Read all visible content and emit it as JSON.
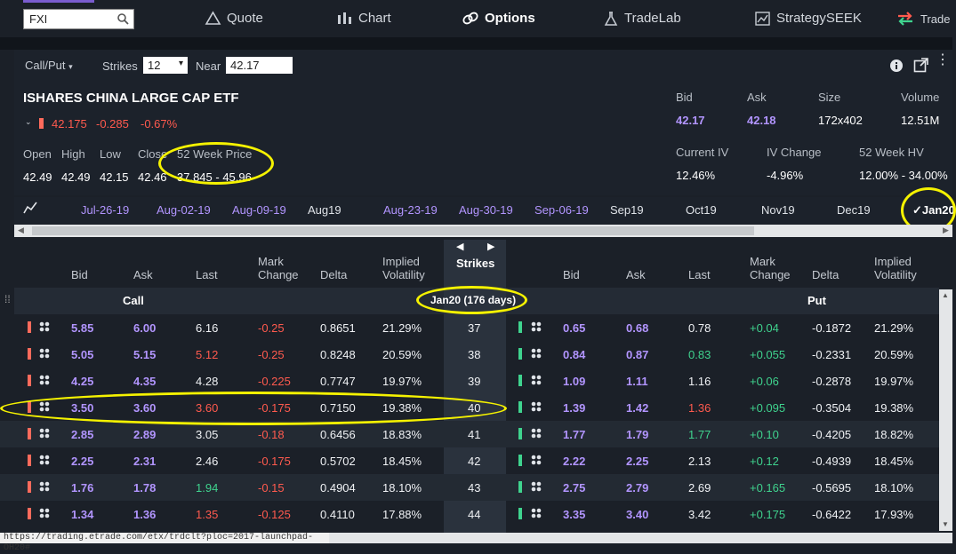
{
  "search": {
    "value": "FXI"
  },
  "nav": {
    "quote": "Quote",
    "chart": "Chart",
    "options": "Options",
    "tradelab": "TradeLab",
    "strategyseek": "StrategySEEK",
    "trade": "Trade"
  },
  "controls": {
    "callput": "Call/Put",
    "strikes_label": "Strikes",
    "strikes_value": "12",
    "near_label": "Near",
    "near_value": "42.17"
  },
  "quote": {
    "name": "ISHARES CHINA LARGE CAP ETF",
    "last": "42.175",
    "change": "-0.285",
    "change_pct": "-0.67%",
    "open_label": "Open",
    "open": "42.49",
    "high_label": "High",
    "high": "42.49",
    "low_label": "Low",
    "low": "42.15",
    "close_label": "Close",
    "close": "42.46",
    "wk52_label": "52 Week Price",
    "wk52": "37.845 - 45.96",
    "bid_label": "Bid",
    "bid": "42.17",
    "ask_label": "Ask",
    "ask": "42.18",
    "size_label": "Size",
    "size": "172x402",
    "volume_label": "Volume",
    "volume": "12.51M",
    "iv_label": "Current IV",
    "iv": "12.46%",
    "ivchg_label": "IV Change",
    "ivchg": "-4.96%",
    "hv_label": "52 Week HV",
    "hv": "12.00% - 34.00%"
  },
  "expirations": [
    "Jul-26-19",
    "Aug-02-19",
    "Aug-09-19",
    "Aug19",
    "Aug-23-19",
    "Aug-30-19",
    "Sep-06-19",
    "Sep19",
    "Oct19",
    "Nov19",
    "Dec19",
    "Jan20"
  ],
  "headers": {
    "bid": "Bid",
    "ask": "Ask",
    "last": "Last",
    "mark1": "Mark",
    "mark2": "Change",
    "delta": "Delta",
    "iv1": "Implied",
    "iv2": "Volatility",
    "strikes": "Strikes",
    "call": "Call",
    "put": "Put",
    "expiry": "Jan20 (176 days)"
  },
  "colors": {
    "accent": "#b295ff",
    "negative": "#ff5a4e",
    "positive": "#3fd38e",
    "highlight": "#f5f200"
  },
  "rows": [
    {
      "strike": "37",
      "c_bid": "5.85",
      "c_ask": "6.00",
      "c_last": "6.16",
      "c_mark": "-0.25",
      "c_delta": "0.8651",
      "c_iv": "21.29%",
      "p_bid": "0.65",
      "p_ask": "0.68",
      "p_last": "0.78",
      "p_mark": "+0.04",
      "p_delta": "-0.1872",
      "p_iv": "21.29%"
    },
    {
      "strike": "38",
      "c_bid": "5.05",
      "c_ask": "5.15",
      "c_last": "5.12",
      "c_mark": "-0.25",
      "c_delta": "0.8248",
      "c_iv": "20.59%",
      "p_bid": "0.84",
      "p_ask": "0.87",
      "p_last": "0.83",
      "p_mark": "+0.055",
      "p_delta": "-0.2331",
      "p_iv": "20.59%"
    },
    {
      "strike": "39",
      "c_bid": "4.25",
      "c_ask": "4.35",
      "c_last": "4.28",
      "c_mark": "-0.225",
      "c_delta": "0.7747",
      "c_iv": "19.97%",
      "p_bid": "1.09",
      "p_ask": "1.11",
      "p_last": "1.16",
      "p_mark": "+0.06",
      "p_delta": "-0.2878",
      "p_iv": "19.97%"
    },
    {
      "strike": "40",
      "c_bid": "3.50",
      "c_ask": "3.60",
      "c_last": "3.60",
      "c_mark": "-0.175",
      "c_delta": "0.7150",
      "c_iv": "19.38%",
      "p_bid": "1.39",
      "p_ask": "1.42",
      "p_last": "1.36",
      "p_mark": "+0.095",
      "p_delta": "-0.3504",
      "p_iv": "19.38%"
    },
    {
      "strike": "41",
      "c_bid": "2.85",
      "c_ask": "2.89",
      "c_last": "3.05",
      "c_mark": "-0.18",
      "c_delta": "0.6456",
      "c_iv": "18.83%",
      "p_bid": "1.77",
      "p_ask": "1.79",
      "p_last": "1.77",
      "p_mark": "+0.10",
      "p_delta": "-0.4205",
      "p_iv": "18.82%"
    },
    {
      "strike": "42",
      "c_bid": "2.25",
      "c_ask": "2.31",
      "c_last": "2.46",
      "c_mark": "-0.175",
      "c_delta": "0.5702",
      "c_iv": "18.45%",
      "p_bid": "2.22",
      "p_ask": "2.25",
      "p_last": "2.13",
      "p_mark": "+0.12",
      "p_delta": "-0.4939",
      "p_iv": "18.45%"
    },
    {
      "strike": "43",
      "c_bid": "1.76",
      "c_ask": "1.78",
      "c_last": "1.94",
      "c_mark": "-0.15",
      "c_delta": "0.4904",
      "c_iv": "18.10%",
      "p_bid": "2.75",
      "p_ask": "2.79",
      "p_last": "2.69",
      "p_mark": "+0.165",
      "p_delta": "-0.5695",
      "p_iv": "18.10%"
    },
    {
      "strike": "44",
      "c_bid": "1.34",
      "c_ask": "1.36",
      "c_last": "1.35",
      "c_mark": "-0.125",
      "c_delta": "0.4110",
      "c_iv": "17.88%",
      "p_bid": "3.35",
      "p_ask": "3.40",
      "p_last": "3.42",
      "p_mark": "+0.175",
      "p_delta": "-0.6422",
      "p_iv": "17.93%"
    }
  ],
  "status": {
    "url": "https://trading.etrade.com/etx/trdclt?ploc=2017-launchpad-OH20#"
  }
}
